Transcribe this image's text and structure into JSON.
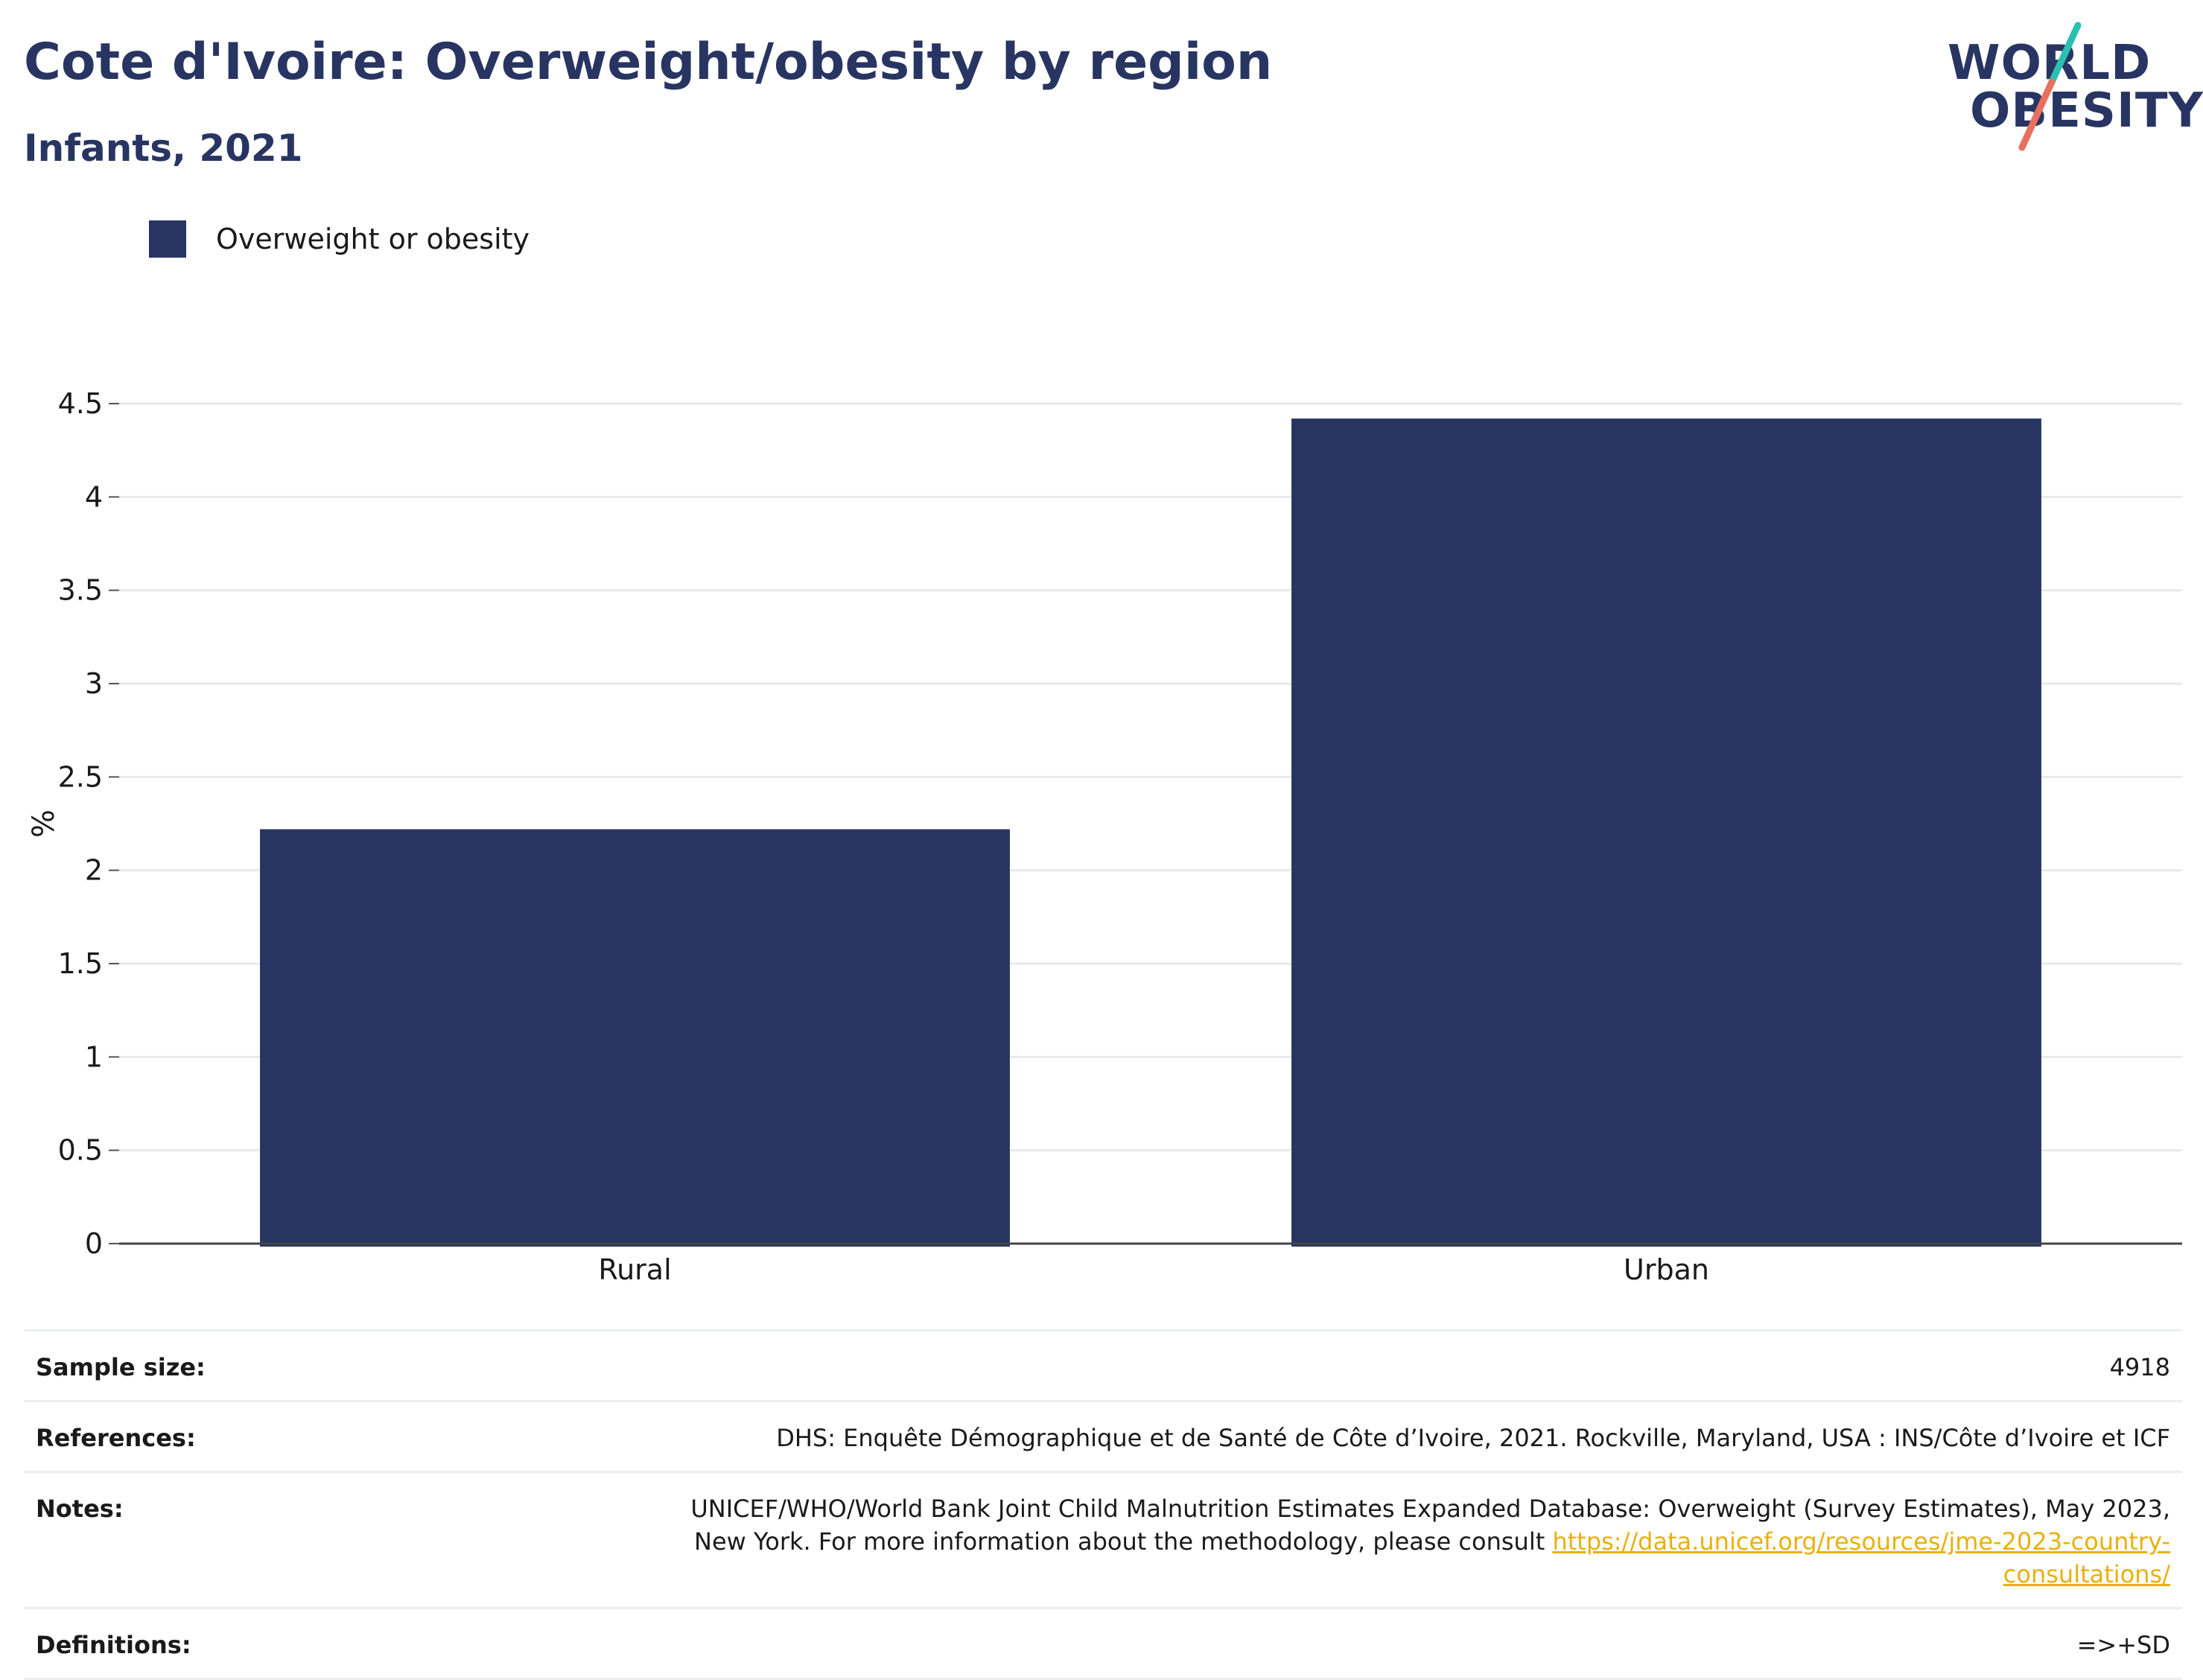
{
  "header": {
    "title": "Cote d'Ivoire: Overweight/obesity by region",
    "subtitle": "Infants, 2021"
  },
  "logo": {
    "line1": "WORLD",
    "line2": "OBESITY",
    "colors": {
      "text": "#283562",
      "slash_top": "#2bbfb3",
      "slash_bottom": "#e8705e"
    }
  },
  "legend": {
    "label": "Overweight or obesity",
    "color": "#283562"
  },
  "chart_data": {
    "type": "bar",
    "categories": [
      "Rural",
      "Urban"
    ],
    "series": [
      {
        "name": "Overweight or obesity",
        "values": [
          2.22,
          4.42
        ],
        "color": "#283562"
      }
    ],
    "ylabel": "%",
    "xlabel": "",
    "ylim": [
      0,
      4.5
    ],
    "yticks": [
      "0",
      "0.5",
      "1",
      "1.5",
      "2",
      "2.5",
      "3",
      "3.5",
      "4",
      "4.5"
    ],
    "grid": true,
    "legend_position": "top-left"
  },
  "info": [
    {
      "key": "Sample size:",
      "value": "4918"
    },
    {
      "key": "References:",
      "value": "DHS: Enquête Démographique et de Santé de Côte d’Ivoire, 2021. Rockville, Maryland, USA : INS/Côte d’Ivoire et ICF"
    },
    {
      "key": "Notes:",
      "value": "UNICEF/WHO/World Bank Joint Child Malnutrition Estimates Expanded Database: Overweight (Survey Estimates), May 2023, New York. For more information about the methodology, please consult ",
      "link": "https://data.unicef.org/resources/jme-2023-country-consultations/"
    },
    {
      "key": "Definitions:",
      "value": "=>+SD"
    }
  ]
}
